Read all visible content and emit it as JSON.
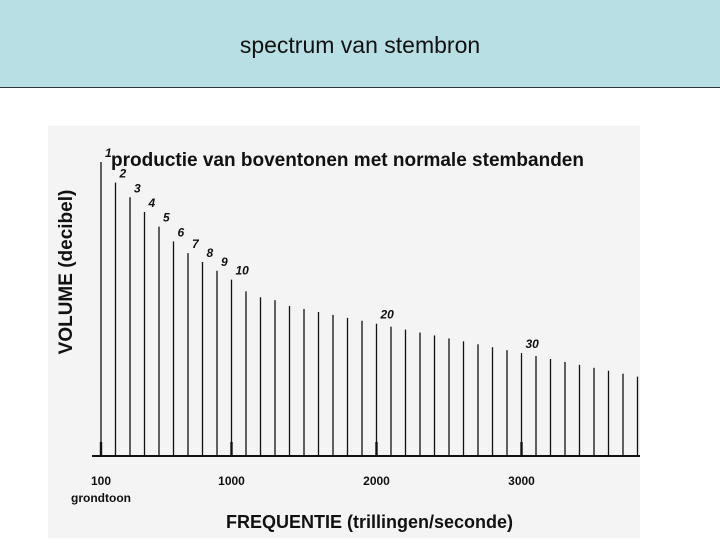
{
  "slide": {
    "title": "spectrum van stembron"
  },
  "chart_data": {
    "type": "bar",
    "title": "productie van boventonen met normale stembanden",
    "xlabel": "FREQUENTIE (trillingen/seconde)",
    "ylabel": "VOLUME (decibel)",
    "x_ticks": [
      {
        "value": 100,
        "label": "100",
        "sublabel": "grondtoon"
      },
      {
        "value": 1000,
        "label": "1000"
      },
      {
        "value": 2000,
        "label": "2000"
      },
      {
        "value": 3000,
        "label": "3000"
      }
    ],
    "harmonics": [
      1,
      2,
      3,
      4,
      5,
      6,
      7,
      8,
      9,
      10,
      11,
      12,
      13,
      14,
      15,
      16,
      17,
      18,
      19,
      20,
      21,
      22,
      23,
      24,
      25,
      26,
      27,
      28,
      29,
      30,
      31,
      32,
      33,
      34,
      35,
      36,
      37,
      38
    ],
    "labeled_harmonics": [
      1,
      2,
      3,
      4,
      5,
      6,
      7,
      8,
      9,
      10,
      20,
      30
    ],
    "values": [
      100,
      93,
      88,
      83,
      78,
      73,
      69,
      66,
      63,
      60,
      56,
      54,
      53,
      51,
      50,
      49,
      48,
      47,
      46,
      45,
      44,
      43,
      42,
      41,
      40,
      39,
      38,
      37,
      36,
      35,
      34,
      33,
      32,
      31,
      30,
      29,
      28,
      27
    ],
    "ylim": [
      0,
      100
    ],
    "grid": false,
    "colors": {
      "bars": "#111111",
      "axis": "#111111",
      "title_bar": "#b8dfe3"
    }
  }
}
